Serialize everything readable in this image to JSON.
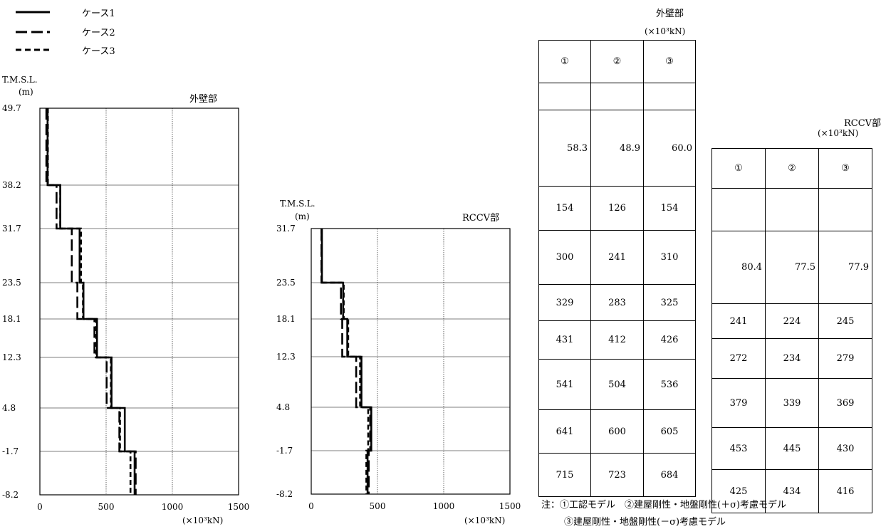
{
  "legend": [
    {
      "label": "ケース1",
      "style": "solid"
    },
    {
      "label": "ケース2",
      "style": "longdash"
    },
    {
      "label": "ケース3",
      "style": "shortdash"
    }
  ],
  "chart_data": [
    {
      "type": "line",
      "title": "外壁部",
      "ylabel_line1": "T.M.S.L.",
      "ylabel_line2": "(m)",
      "xunit": "(×10³kN)",
      "xlim": [
        0,
        1500
      ],
      "xticks": [
        0,
        500,
        1000,
        1500
      ],
      "xtick_labels": [
        "0",
        "500",
        "1000",
        "1500"
      ],
      "levels": [
        49.7,
        38.2,
        31.7,
        23.5,
        18.1,
        12.3,
        4.8,
        -1.7,
        -8.2
      ],
      "level_labels": [
        "49.7",
        "38.2",
        "31.7",
        "23.5",
        "18.1",
        "12.3",
        "4.8",
        "-1.7",
        "-8.2"
      ],
      "series": [
        {
          "name": "ケース1",
          "values": [
            58.3,
            154,
            300,
            329,
            431,
            541,
            641,
            715
          ]
        },
        {
          "name": "ケース2",
          "values": [
            48.9,
            126,
            241,
            283,
            412,
            504,
            600,
            723
          ]
        },
        {
          "name": "ケース3",
          "values": [
            60.0,
            154,
            310,
            325,
            426,
            536,
            605,
            684
          ]
        }
      ]
    },
    {
      "type": "line",
      "title": "RCCV部",
      "ylabel_line1": "T.M.S.L.",
      "ylabel_line2": "(m)",
      "xunit": "(×10³kN)",
      "xlim": [
        0,
        1500
      ],
      "xticks": [
        0,
        500,
        1000,
        1500
      ],
      "xtick_labels": [
        "0",
        "500",
        "1000",
        "1500"
      ],
      "levels": [
        31.7,
        23.5,
        18.1,
        12.3,
        4.8,
        -1.7,
        -8.2
      ],
      "level_labels": [
        "31.7",
        "23.5",
        "18.1",
        "12.3",
        "4.8",
        "-1.7",
        "-8.2"
      ],
      "series": [
        {
          "name": "ケース1",
          "values": [
            80.4,
            241,
            272,
            379,
            453,
            425
          ]
        },
        {
          "name": "ケース2",
          "values": [
            77.5,
            224,
            234,
            339,
            445,
            434
          ]
        },
        {
          "name": "ケース3",
          "values": [
            77.9,
            245,
            279,
            369,
            430,
            416
          ]
        }
      ]
    }
  ],
  "table_outer": {
    "title": "外壁部",
    "unit": "(×10³kN)",
    "headers": [
      "①",
      "②",
      "③"
    ],
    "rows": [
      [
        "",
        "",
        ""
      ],
      [
        "58.3",
        "48.9",
        "60.0"
      ],
      [
        "154",
        "126",
        "154"
      ],
      [
        "300",
        "241",
        "310"
      ],
      [
        "329",
        "283",
        "325"
      ],
      [
        "431",
        "412",
        "426"
      ],
      [
        "541",
        "504",
        "536"
      ],
      [
        "641",
        "600",
        "605"
      ],
      [
        "715",
        "723",
        "684"
      ]
    ]
  },
  "table_rccv": {
    "title": "RCCV部",
    "unit": "(×10³kN)",
    "headers": [
      "①",
      "②",
      "③"
    ],
    "rows": [
      [
        "",
        "",
        ""
      ],
      [
        "80.4",
        "77.5",
        "77.9"
      ],
      [
        "241",
        "224",
        "245"
      ],
      [
        "272",
        "234",
        "279"
      ],
      [
        "379",
        "339",
        "369"
      ],
      [
        "453",
        "445",
        "430"
      ],
      [
        "425",
        "434",
        "416"
      ]
    ]
  },
  "note": {
    "line1": "注：①工認モデル　②建屋剛性・地盤剛性(＋σ)考慮モデル",
    "line2": "③建屋剛性・地盤剛性(－σ)考慮モデル"
  }
}
